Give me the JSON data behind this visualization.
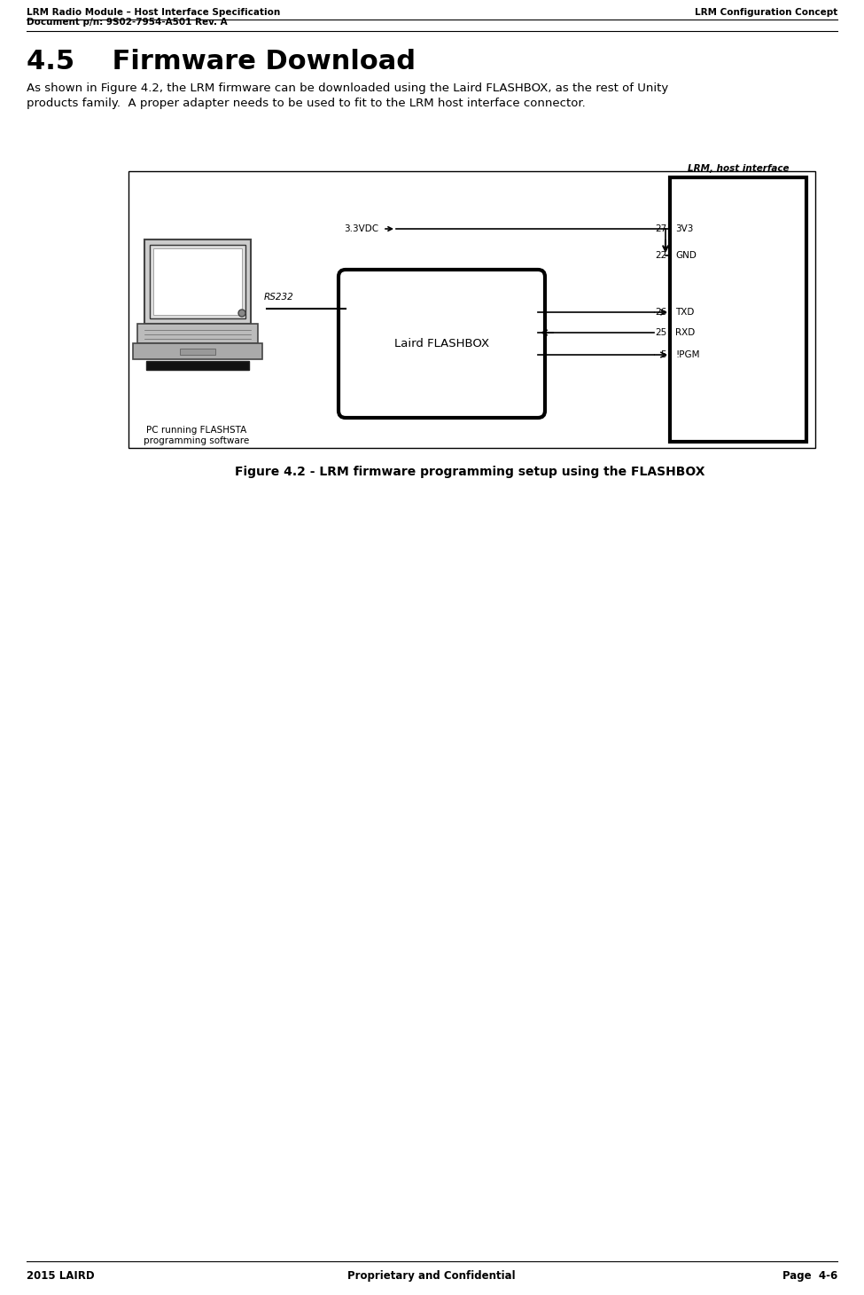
{
  "header_left_line1": "LRM Radio Module – Host Interface Specification",
  "header_left_line2": "Document p/n: 9S02-7954-A501 Rev. A",
  "header_right": "LRM Configuration Concept",
  "section_title": "4.5    Firmware Download",
  "body_line1": "As shown in Figure 4.2, the LRM firmware can be downloaded using the Laird FLASHBOX, as the rest of Unity",
  "body_line2": "products family.  A proper adapter needs to be used to fit to the LRM host interface connector.",
  "figure_caption": "Figure 4.2 - LRM firmware programming setup using the FLASHBOX",
  "footer_left": "2015 LAIRD",
  "footer_center": "Proprietary and Confidential",
  "footer_right": "Page  4-6",
  "lrm_label": "LRM, host interface",
  "flashbox_label": "Laird FLASHBOX",
  "rs232_label": "RS232",
  "vdc_label": "3.3VDC",
  "pc_label_line1": "PC running FLASHSTA",
  "pc_label_line2": "programming software",
  "pin_27": "27",
  "pin_22": "22",
  "pin_26": "26",
  "pin_25": "25",
  "pin_5": "5",
  "sig_3v3": "3V3",
  "sig_gnd": "GND",
  "sig_txd": "TXD",
  "sig_rxd": "RXD",
  "sig_ipgm": "!PGM",
  "bg_color": "#ffffff"
}
